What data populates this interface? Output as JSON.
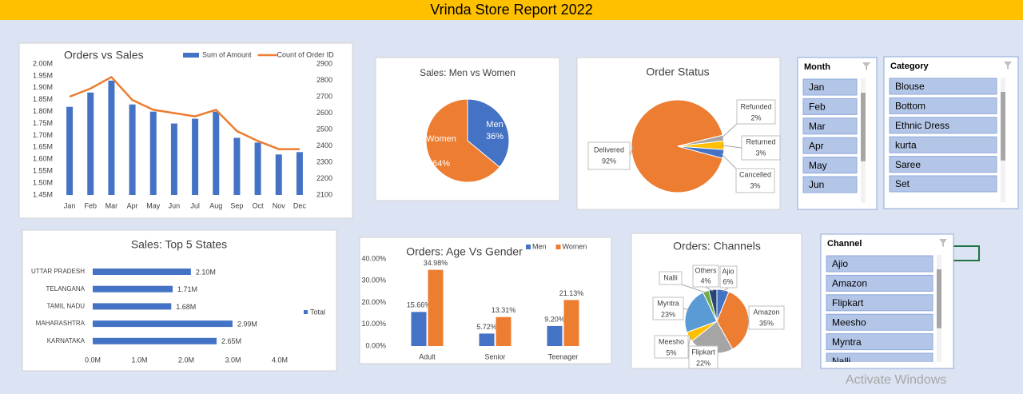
{
  "header": {
    "title": "Vrinda Store Report 2022"
  },
  "chart_data": [
    {
      "type": "combo",
      "title": "Orders vs Sales",
      "categories": [
        "Jan",
        "Feb",
        "Mar",
        "Apr",
        "May",
        "Jun",
        "Jul",
        "Aug",
        "Sep",
        "Oct",
        "Nov",
        "Dec"
      ],
      "series": [
        {
          "name": "Sum of Amount",
          "type": "bar",
          "color": "#4472c4",
          "values": [
            1.82,
            1.88,
            1.93,
            1.83,
            1.8,
            1.75,
            1.77,
            1.8,
            1.69,
            1.67,
            1.62,
            1.63
          ]
        },
        {
          "name": "Count of Order ID",
          "type": "line",
          "axis": "y2",
          "color": "#ed7d31",
          "values": [
            2700,
            2750,
            2820,
            2680,
            2620,
            2600,
            2580,
            2620,
            2490,
            2430,
            2380,
            2380
          ]
        }
      ],
      "ylim": [
        1.45,
        2.0
      ],
      "yticks": [
        {
          "value": 1.45,
          "label": "1.45M"
        },
        {
          "value": 1.5,
          "label": "1.50M"
        },
        {
          "value": 1.55,
          "label": "1.55M"
        },
        {
          "value": 1.6,
          "label": "1.60M"
        },
        {
          "value": 1.65,
          "label": "1.65M"
        },
        {
          "value": 1.7,
          "label": "1.70M"
        },
        {
          "value": 1.75,
          "label": "1.75M"
        },
        {
          "value": 1.8,
          "label": "1.80M"
        },
        {
          "value": 1.85,
          "label": "1.85M"
        },
        {
          "value": 1.9,
          "label": "1.90M"
        },
        {
          "value": 1.95,
          "label": "1.95M"
        },
        {
          "value": 2.0,
          "label": "2.00M"
        }
      ],
      "y2lim": [
        2100,
        2900
      ],
      "y2ticks": [
        2100,
        2200,
        2300,
        2400,
        2500,
        2600,
        2700,
        2800,
        2900
      ],
      "legend": "top-right"
    },
    {
      "type": "pie",
      "title": "Sales: Men vs Women",
      "categories": [
        "Men",
        "Women"
      ],
      "values": [
        36,
        64
      ],
      "value_labels": [
        "36%",
        "64%"
      ],
      "colors": [
        "#4472c4",
        "#ed7d31"
      ]
    },
    {
      "type": "pie",
      "title": "Order Status",
      "categories": [
        "Delivered",
        "Refunded",
        "Returned",
        "Cancelled"
      ],
      "values": [
        92,
        2,
        3,
        3
      ],
      "value_labels": [
        "92%",
        "2%",
        "3%",
        "3%"
      ],
      "colors": [
        "#ed7d31",
        "#a5a5a5",
        "#ffc000",
        "#4472c4"
      ]
    },
    {
      "type": "hbar",
      "title": "Sales: Top 5 States",
      "categories": [
        "UTTAR PRADESH",
        "TELANGANA",
        "TAMIL NADU",
        "MAHARASHTRA",
        "KARNATAKA"
      ],
      "series": [
        {
          "name": "Total",
          "color": "#4472c4",
          "values": [
            2.1,
            1.71,
            1.68,
            2.99,
            2.65
          ],
          "value_labels": [
            "2.10M",
            "1.71M",
            "1.68M",
            "2.99M",
            "2.65M"
          ]
        }
      ],
      "xlim": [
        0,
        4
      ],
      "xticks": [
        {
          "value": 0,
          "label": "0.0M"
        },
        {
          "value": 1,
          "label": "1.0M"
        },
        {
          "value": 2,
          "label": "2.0M"
        },
        {
          "value": 3,
          "label": "3.0M"
        },
        {
          "value": 4,
          "label": "4.0M"
        }
      ],
      "legend": "right"
    },
    {
      "type": "bar",
      "title": "Orders: Age Vs Gender",
      "categories": [
        "Adult",
        "Senior",
        "Teenager"
      ],
      "series": [
        {
          "name": "Men",
          "color": "#4472c4",
          "values": [
            15.66,
            5.72,
            9.2
          ],
          "value_labels": [
            "15.66%",
            "5.72%",
            "9.20%"
          ]
        },
        {
          "name": "Women",
          "color": "#ed7d31",
          "values": [
            34.98,
            13.31,
            21.13
          ],
          "value_labels": [
            "34.98%",
            "13.31%",
            "21.13%"
          ]
        }
      ],
      "ylim": [
        0,
        40
      ],
      "yticks": [
        {
          "value": 0,
          "label": "0.00%"
        },
        {
          "value": 10,
          "label": "10.00%"
        },
        {
          "value": 20,
          "label": "20.00%"
        },
        {
          "value": 30,
          "label": "30.00%"
        },
        {
          "value": 40,
          "label": "40.00%"
        }
      ],
      "legend": "top-right"
    },
    {
      "type": "pie",
      "title": "Orders: Channels",
      "categories": [
        "Ajio",
        "Amazon",
        "Flipkart",
        "Meesho",
        "Myntra",
        "Nalli",
        "Others"
      ],
      "values": [
        6,
        35,
        22,
        5,
        23,
        3,
        4
      ],
      "value_labels": [
        "6%",
        "35%",
        "22%",
        "5%",
        "23%",
        null,
        "4%"
      ],
      "colors": [
        "#4472c4",
        "#ed7d31",
        "#a5a5a5",
        "#ffc000",
        "#5b9bd5",
        "#70ad47",
        "#264478"
      ]
    }
  ],
  "slicers": [
    {
      "title": "Month",
      "items": [
        "Jan",
        "Feb",
        "Mar",
        "Apr",
        "May",
        "Jun"
      ]
    },
    {
      "title": "Category",
      "items": [
        "Blouse",
        "Bottom",
        "Ethnic Dress",
        "kurta",
        "Saree",
        "Set"
      ]
    },
    {
      "title": "Channel",
      "items": [
        "Ajio",
        "Amazon",
        "Flipkart",
        "Meesho",
        "Myntra",
        "Nalli"
      ]
    }
  ],
  "watermark": "Activate Windows"
}
